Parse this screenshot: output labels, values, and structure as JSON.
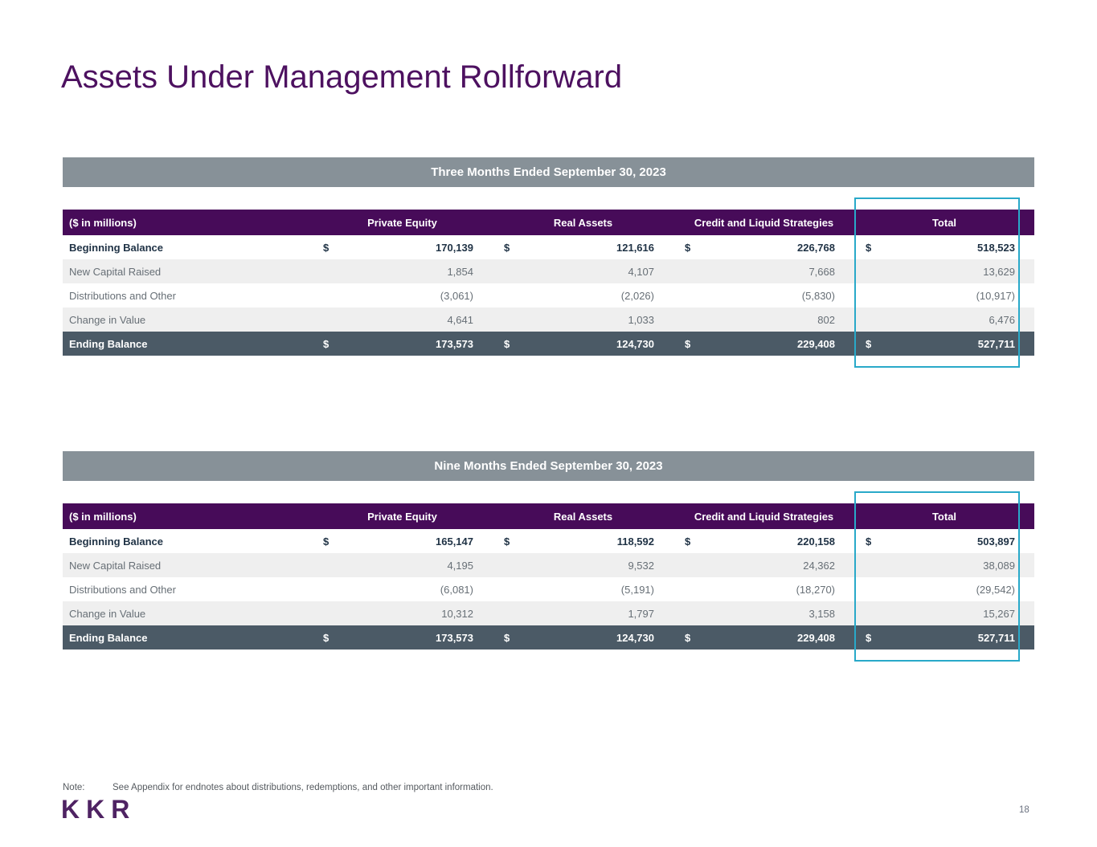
{
  "page": {
    "title": "Assets Under Management Rollforward",
    "note_label": "Note:",
    "note_text": "See Appendix for endnotes about distributions, redemptions, and other important information.",
    "logo_text": "KKR",
    "page_number": "18"
  },
  "colors": {
    "header_purple": "#470b59",
    "banner_gray": "#879198",
    "total_row_slate": "#4b5a66",
    "alt_row_gray": "#efefef",
    "highlight_cyan": "#29a9c9",
    "title_purple": "#4d1160",
    "bold_text_navy": "#1f3245",
    "body_text_gray": "#676f76"
  },
  "tables": [
    {
      "banner": "Three Months Ended September 30, 2023",
      "unit_label": "($ in millions)",
      "columns": [
        "Private Equity",
        "Real Assets",
        "Credit and Liquid Strategies",
        "Total"
      ],
      "rows": [
        {
          "label": "Beginning Balance",
          "style": "bold",
          "dollar": "$",
          "values": [
            "170,139",
            "121,616",
            "226,768",
            "518,523"
          ]
        },
        {
          "label": "New Capital Raised",
          "style": "alt",
          "dollar": "",
          "values": [
            "1,854",
            "4,107",
            "7,668",
            "13,629"
          ]
        },
        {
          "label": "Distributions and Other",
          "style": "plain",
          "dollar": "",
          "values": [
            "(3,061)",
            "(2,026)",
            "(5,830)",
            "(10,917)"
          ]
        },
        {
          "label": "Change in Value",
          "style": "alt",
          "dollar": "",
          "values": [
            "4,641",
            "1,033",
            "802",
            "6,476"
          ]
        },
        {
          "label": "Ending Balance",
          "style": "total",
          "dollar": "$",
          "values": [
            "173,573",
            "124,730",
            "229,408",
            "527,711"
          ]
        }
      ]
    },
    {
      "banner": "Nine Months Ended September 30, 2023",
      "unit_label": "($ in millions)",
      "columns": [
        "Private Equity",
        "Real Assets",
        "Credit and Liquid Strategies",
        "Total"
      ],
      "rows": [
        {
          "label": "Beginning Balance",
          "style": "bold",
          "dollar": "$",
          "values": [
            "165,147",
            "118,592",
            "220,158",
            "503,897"
          ]
        },
        {
          "label": "New Capital Raised",
          "style": "alt",
          "dollar": "",
          "values": [
            "4,195",
            "9,532",
            "24,362",
            "38,089"
          ]
        },
        {
          "label": "Distributions and Other",
          "style": "plain",
          "dollar": "",
          "values": [
            "(6,081)",
            "(5,191)",
            "(18,270)",
            "(29,542)"
          ]
        },
        {
          "label": "Change in Value",
          "style": "alt",
          "dollar": "",
          "values": [
            "10,312",
            "1,797",
            "3,158",
            "15,267"
          ]
        },
        {
          "label": "Ending Balance",
          "style": "total",
          "dollar": "$",
          "values": [
            "173,573",
            "124,730",
            "229,408",
            "527,711"
          ]
        }
      ]
    }
  ]
}
